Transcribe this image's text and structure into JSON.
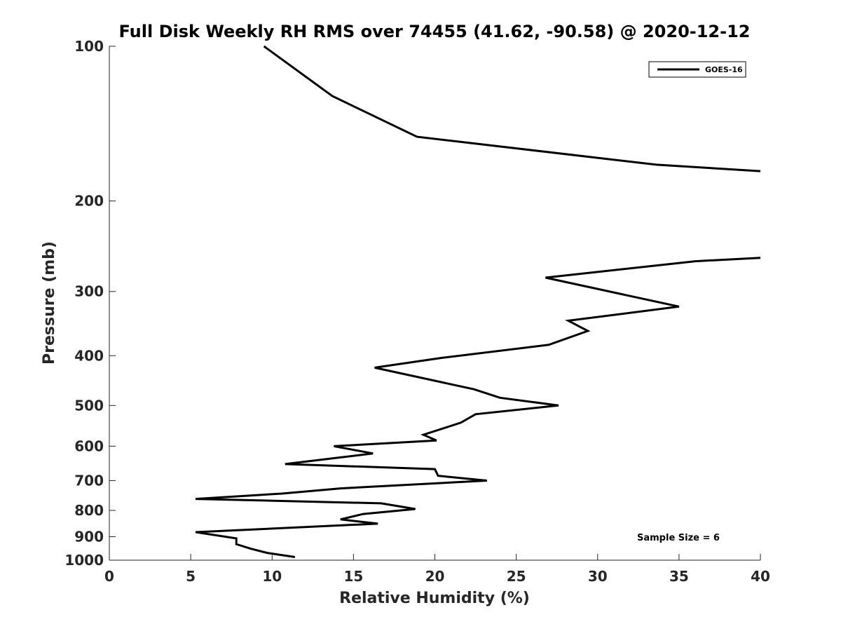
{
  "chart_data": {
    "type": "line",
    "title": "Full Disk Weekly RH RMS over 74455 (41.62, -90.58) @ 2020-12-12",
    "xlabel": "Relative Humidity (%)",
    "ylabel": "Pressure (mb)",
    "xlim": [
      0,
      40
    ],
    "ylim": [
      100,
      1000
    ],
    "yscale": "log",
    "y_reversed": true,
    "x_ticks": [
      "0",
      "5",
      "10",
      "15",
      "20",
      "25",
      "30",
      "35",
      "40"
    ],
    "x_tick_values": [
      0,
      5,
      10,
      15,
      20,
      25,
      30,
      35,
      40
    ],
    "y_ticks": [
      "100",
      "200",
      "300",
      "400",
      "500",
      "600",
      "700",
      "800",
      "900",
      "1000"
    ],
    "y_tick_values": [
      100,
      200,
      300,
      400,
      500,
      600,
      700,
      800,
      900,
      1000
    ],
    "grid": false,
    "legend_position": "top-right",
    "annotation": "Sample Size = 6",
    "series": [
      {
        "name": "GOES-16",
        "color": "#000000",
        "segments": [
          [
            [
              9.5,
              100
            ],
            [
              13.7,
              125
            ],
            [
              18.9,
              150
            ],
            [
              33.6,
              170
            ],
            [
              40.0,
              175
            ]
          ],
          [
            [
              40.0,
              258
            ],
            [
              36.0,
              262
            ],
            [
              26.8,
              282
            ],
            [
              35.0,
              321
            ],
            [
              28.2,
              342
            ],
            [
              29.4,
              358
            ],
            [
              27.0,
              381
            ],
            [
              20.4,
              404
            ],
            [
              16.3,
              422
            ],
            [
              22.4,
              465
            ],
            [
              24.0,
              483
            ],
            [
              27.6,
              500
            ],
            [
              22.5,
              520
            ],
            [
              21.6,
              540
            ],
            [
              19.3,
              570
            ],
            [
              20.1,
              585
            ],
            [
              13.8,
              600
            ],
            [
              16.2,
              620
            ],
            [
              10.8,
              650
            ],
            [
              20.0,
              665
            ],
            [
              20.2,
              685
            ],
            [
              23.2,
              700
            ],
            [
              14.2,
              725
            ],
            [
              10.6,
              742
            ],
            [
              5.3,
              760
            ],
            [
              16.7,
              775
            ],
            [
              18.8,
              795
            ],
            [
              15.6,
              813
            ],
            [
              14.2,
              833
            ],
            [
              16.5,
              849
            ],
            [
              5.3,
              882
            ],
            [
              7.8,
              907
            ],
            [
              7.8,
              931
            ],
            [
              8.7,
              950
            ],
            [
              9.7,
              968
            ],
            [
              11.4,
              986
            ]
          ]
        ]
      }
    ]
  }
}
